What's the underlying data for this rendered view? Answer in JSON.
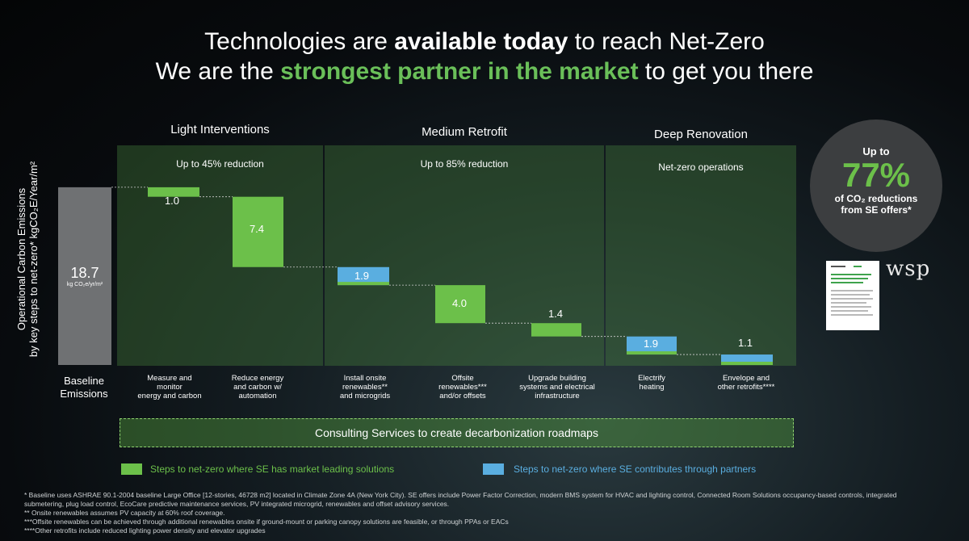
{
  "header": {
    "line1_pre": "Technologies are ",
    "line1_bold": "available today",
    "line1_post": " to reach Net-Zero",
    "line2_pre": "We are the ",
    "line2_hl": "strongest partner in the market",
    "line2_post": " to get you there"
  },
  "phases": [
    {
      "title": "Light Interventions",
      "subtitle": "Up to 45% reduction"
    },
    {
      "title": "Medium Retrofit",
      "subtitle": "Up to 85% reduction"
    },
    {
      "title": "Deep Renovation",
      "subtitle": "Net-zero operations"
    }
  ],
  "y_axis": {
    "line1": "Operational Carbon Emissions",
    "line2": "by key steps to net-zero* kgCO₂E/Year/m²"
  },
  "baseline": {
    "value_label": "18.7",
    "unit": "kg CO₂e/yr/m²",
    "label_line1": "Baseline",
    "label_line2": "Emissions"
  },
  "chart_data": {
    "type": "bar",
    "subtype": "waterfall",
    "categories": [
      "Baseline Emissions",
      "Measure and monitor energy and carbon",
      "Reduce energy and carbon w/ automation",
      "Install onsite renewables** and microgrids",
      "Offsite renewables*** and/or offsets",
      "Upgrade building systems and electrical infrastructure",
      "Electrify heating",
      "Envelope and other retrofits****"
    ],
    "baseline": 18.7,
    "values": [
      18.7,
      1.0,
      7.4,
      1.9,
      4.0,
      1.4,
      1.9,
      1.1
    ],
    "step_type": [
      "baseline",
      "se",
      "se",
      "partner",
      "se",
      "se",
      "partner",
      "partner"
    ],
    "ylabel": "Operational Carbon Emissions by key steps to net-zero* kgCO₂E/Year/m²",
    "ylim": [
      0,
      18.7
    ]
  },
  "steps": [
    {
      "value_label": "1.0",
      "label_lines": [
        "Measure and",
        "monitor",
        "energy and carbon"
      ]
    },
    {
      "value_label": "7.4",
      "label_lines": [
        "Reduce energy",
        "and carbon w/",
        "automation"
      ]
    },
    {
      "value_label": "1.9",
      "label_lines": [
        "Install onsite",
        "renewables**",
        "and microgrids"
      ]
    },
    {
      "value_label": "4.0",
      "label_lines": [
        "Offsite",
        "renewables***",
        "and/or offsets"
      ]
    },
    {
      "value_label": "1.4",
      "label_lines": [
        "Upgrade building",
        "systems and electrical",
        "infrastructure"
      ]
    },
    {
      "value_label": "1.9",
      "label_lines": [
        "Electrify",
        "heating"
      ]
    },
    {
      "value_label": "1.1",
      "label_lines": [
        "Envelope and",
        "other retrofits****"
      ]
    }
  ],
  "consulting": "Consulting Services to create decarbonization roadmaps",
  "legend": {
    "se": "Steps to net-zero where SE has market leading solutions",
    "partner": "Steps to net-zero where SE contributes through partners"
  },
  "circle": {
    "line1": "Up to",
    "big": "77%",
    "line2": "of CO₂ reductions",
    "line3": "from SE offers*"
  },
  "wsp_logo": "wsp",
  "colors": {
    "se_green": "#6cc04a",
    "partner_blue": "#5aaee0",
    "baseline_gray": "#6f7173",
    "highlight": "#6abf59"
  },
  "footnotes": [
    "* Baseline uses ASHRAE 90.1-2004 baseline Large Office [12-stories, 46728 m2] located in Climate Zone 4A (New York City). SE offers include Power Factor Correction, modern BMS system for HVAC and lighting control, Connected Room Solutions occupancy-based controls, integrated submetering, plug load control, EcoCare predictive maintenance services, PV integrated microgrid, renewables and offset advisory services.",
    "** Onsite renewables assumes PV capacity at 60% roof coverage.",
    "***Offsite renewables can be achieved through additional renewables onsite if ground-mount or parking canopy solutions are feasible, or through PPAs or EACs",
    "****Other retrofits include reduced lighting power density and elevator upgrades"
  ]
}
